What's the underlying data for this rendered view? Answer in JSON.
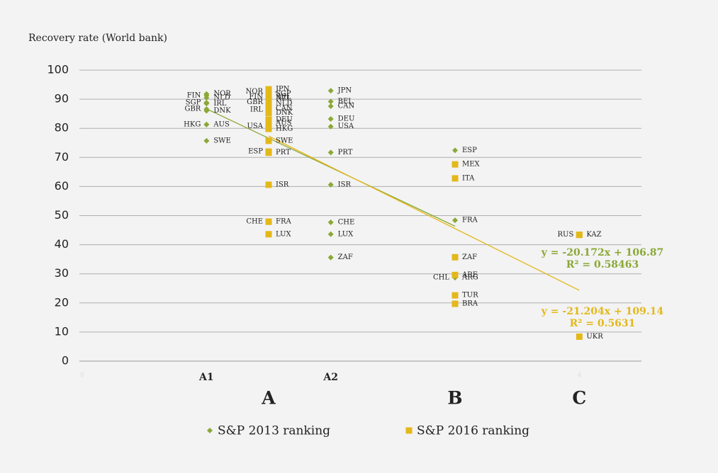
{
  "chart_data": {
    "type": "scatter",
    "y_axis_title": "Recovery rate (World bank)",
    "xlim": [
      0,
      4.5
    ],
    "xticks": [
      0,
      4
    ],
    "ylim": [
      0,
      100
    ],
    "yticks": [
      0,
      10,
      20,
      30,
      40,
      50,
      60,
      70,
      80,
      90,
      100
    ],
    "grid": true,
    "x_labels": [
      {
        "value": 1,
        "label": "A1"
      },
      {
        "value": 2,
        "label": "A2"
      }
    ],
    "group_labels": [
      {
        "value": 1.5,
        "label": "A"
      },
      {
        "value": 3,
        "label": "B"
      },
      {
        "value": 4,
        "label": "C"
      }
    ],
    "series": [
      {
        "name": "S&P 2013 ranking",
        "color": "#8ba836",
        "marker": "diamond",
        "labels": [
          "NOR",
          "FIN",
          "NLD",
          "SGP",
          "IRL",
          "GBR",
          "DNK",
          "HKG",
          "AUS",
          "SWE",
          "JPN",
          "BEL",
          "CAN",
          "DEU",
          "USA",
          "PRT",
          "ISR",
          "CHE",
          "LUX",
          "ZAF",
          "ESP",
          "FRA",
          "CHL",
          "ARG"
        ],
        "x": [
          1,
          1,
          1,
          1,
          1,
          1,
          1,
          1,
          1,
          1,
          2,
          2,
          2,
          2,
          2,
          2,
          2,
          2,
          2,
          2,
          3,
          3,
          3,
          3
        ],
        "values": [
          91.8,
          91.3,
          90.5,
          88.8,
          88.5,
          86.6,
          86.0,
          81.3,
          81.3,
          75.7,
          92.9,
          89.2,
          87.6,
          83.2,
          80.6,
          71.7,
          60.6,
          47.7,
          43.6,
          35.6,
          72.4,
          48.4,
          28.7,
          28.7
        ],
        "trendline": {
          "slope": -20.172,
          "intercept": 106.87,
          "equation": "y = -20.172x + 106.87",
          "r2": "R² = 0.58463"
        }
      },
      {
        "name": "S&P 2016 ranking",
        "color": "#e3b81a",
        "marker": "square",
        "labels": [
          "JPN",
          "NOR",
          "SGP",
          "FIN",
          "BEL",
          "NZL",
          "GBR",
          "NLD",
          "IRL",
          "CAN",
          "DNK",
          "DEU",
          "AUS",
          "USA",
          "HKG",
          "SWE",
          "ESP",
          "PRT",
          "ISR",
          "CHE",
          "FRA",
          "LUX",
          "MEX",
          "ITA",
          "ZAF",
          "ARE",
          "TUR",
          "BRA",
          "RUS",
          "KAZ",
          "UKR"
        ],
        "x": [
          1.5,
          1.5,
          1.5,
          1.5,
          1.5,
          1.5,
          1.5,
          1.5,
          1.5,
          1.5,
          1.5,
          1.5,
          1.5,
          1.5,
          1.5,
          1.5,
          1.5,
          1.5,
          1.5,
          1.5,
          1.5,
          1.5,
          3,
          3,
          3,
          3,
          3,
          3,
          4,
          4,
          4
        ],
        "values": [
          93.4,
          92.6,
          91.9,
          90.8,
          90.6,
          90.3,
          88.9,
          88.6,
          86.4,
          86.8,
          85.3,
          83.0,
          81.8,
          80.6,
          79.8,
          75.7,
          72.0,
          71.6,
          60.6,
          47.9,
          47.9,
          43.6,
          67.6,
          62.8,
          35.7,
          29.6,
          22.6,
          19.7,
          43.4,
          43.4,
          8.4
        ],
        "trendline": {
          "slope": -21.204,
          "intercept": 109.14,
          "equation": "y = -21.204x + 109.14",
          "r2": "R² = 0.5631"
        }
      }
    ]
  }
}
